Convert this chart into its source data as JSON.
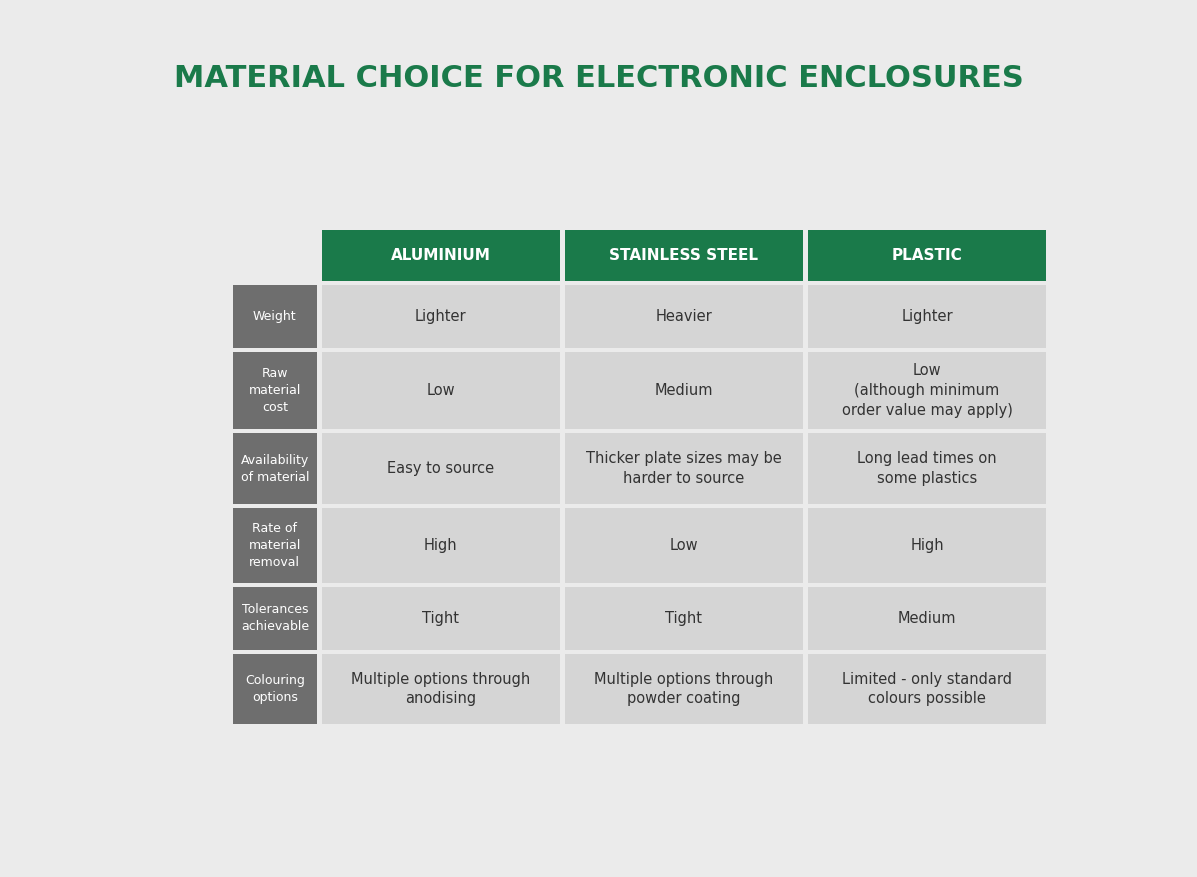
{
  "title": "MATERIAL CHOICE FOR ELECTRONIC ENCLOSURES",
  "title_color": "#1a7a4a",
  "title_fontsize": 22,
  "background_color": "#ebebeb",
  "header_bg_color": "#1a7a4a",
  "header_text_color": "#ffffff",
  "row_label_bg_color": "#6e6e6e",
  "row_label_text_color": "#ffffff",
  "cell_bg_color": "#d5d5d5",
  "cell_text_color": "#333333",
  "headers": [
    "ALUMINIUM",
    "STAINLESS STEEL",
    "PLASTIC"
  ],
  "row_labels": [
    "Weight",
    "Raw\nmaterial\ncost",
    "Availability\nof material",
    "Rate of\nmaterial\nremoval",
    "Tolerances\nachievable",
    "Colouring\noptions"
  ],
  "cells": [
    [
      "Lighter",
      "Heavier",
      "Lighter"
    ],
    [
      "Low",
      "Medium",
      "Low\n(although minimum\norder value may apply)"
    ],
    [
      "Easy to source",
      "Thicker plate sizes may be\nharder to source",
      "Long lead times on\nsome plastics"
    ],
    [
      "High",
      "Low",
      "High"
    ],
    [
      "Tight",
      "Tight",
      "Medium"
    ],
    [
      "Multiple options through\nanodising",
      "Multiple options through\npowder coating",
      "Limited - only standard\ncolours possible"
    ]
  ],
  "header_fontsize": 11,
  "row_label_fontsize": 9,
  "cell_fontsize": 10.5
}
